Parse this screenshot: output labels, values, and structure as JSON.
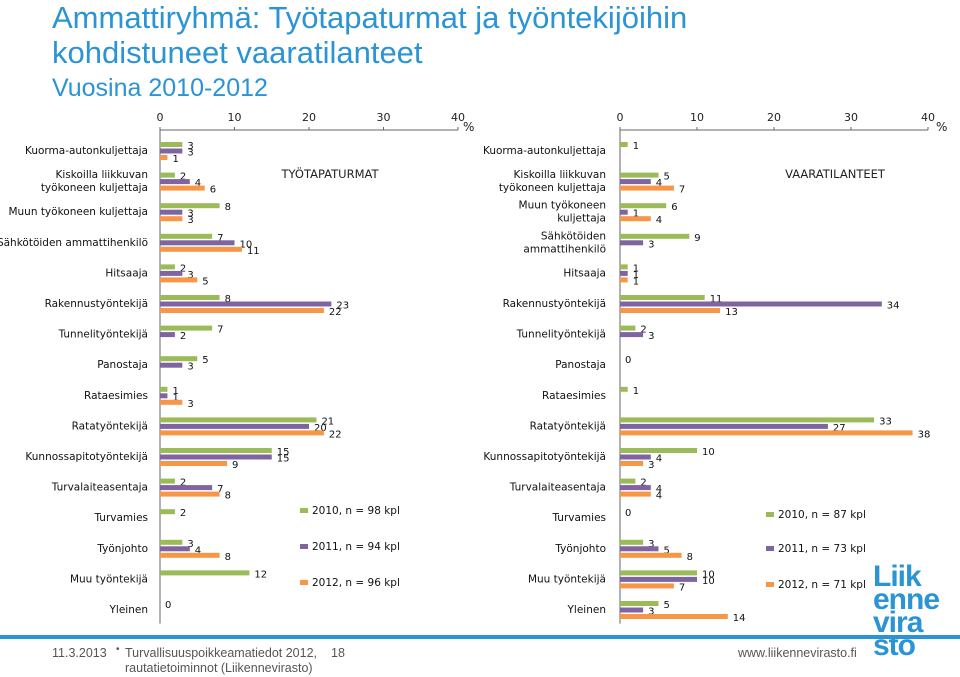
{
  "header": {
    "title_line1": "Ammattiryhmä: Työtapaturmat ja työntekijöihin",
    "title_line2": "kohdistuneet vaaratilanteet",
    "subtitle": "Vuosina 2010-2012"
  },
  "colors": {
    "2010": "#9bbb59",
    "2011": "#8064a2",
    "2012": "#f79646",
    "accent": "#2a94d4",
    "axis": "#666666"
  },
  "chart_data": [
    {
      "type": "bar",
      "orientation": "horizontal",
      "title": "TYÖTAPATURMAT",
      "unit": "%",
      "xlim": [
        0,
        40
      ],
      "xticks": [
        0,
        10,
        20,
        30,
        40
      ],
      "legend_position": "right",
      "categories": [
        "Kuorma-autonkuljettaja",
        "Kiskoilla liikkuvan työkoneen kuljettaja",
        "Muun työkoneen kuljettaja",
        "Sähkötöiden ammattihenkilö",
        "Hitsaaja",
        "Rakennustyöntekijä",
        "Tunnelityöntekijä",
        "Panostaja",
        "Rataesimies",
        "Ratatyöntekijä",
        "Kunnossapitotyöntekijä",
        "Turvalaiteasentaja",
        "Turvamies",
        "Työnjohto",
        "Muu työntekijä",
        "Yleinen"
      ],
      "series": [
        {
          "name": "2010, n = 98 kpl",
          "values": [
            3,
            2,
            8,
            7,
            2,
            8,
            7,
            5,
            1,
            21,
            15,
            2,
            2,
            3,
            12,
            0
          ]
        },
        {
          "name": "2011, n = 94 kpl",
          "values": [
            3,
            4,
            3,
            10,
            3,
            23,
            2,
            3,
            1,
            20,
            15,
            7,
            null,
            4,
            null,
            null
          ]
        },
        {
          "name": "2012, n = 96 kpl",
          "values": [
            1,
            6,
            3,
            11,
            5,
            22,
            null,
            null,
            3,
            22,
            9,
            8,
            null,
            8,
            null,
            null
          ]
        }
      ]
    },
    {
      "type": "bar",
      "orientation": "horizontal",
      "title": "VAARATILANTEET",
      "unit": "%",
      "xlim": [
        0,
        40
      ],
      "xticks": [
        0,
        10,
        20,
        30,
        40
      ],
      "legend_position": "right",
      "categories": [
        "Kuorma-autonkuljettaja",
        "Kiskoilla liikkuvan työkoneen kuljettaja",
        "Muun työkoneen kuljettaja",
        "Sähkötöiden ammattihenkilö",
        "Hitsaaja",
        "Rakennustyöntekijä",
        "Tunnelityöntekijä",
        "Panostaja",
        "Rataesimies",
        "Ratatyöntekijä",
        "Kunnossapitotyöntekijä",
        "Turvalaiteasentaja",
        "Turvamies",
        "Työnjohto",
        "Muu työntekijä",
        "Yleinen"
      ],
      "series": [
        {
          "name": "2010, n = 87 kpl",
          "values": [
            1,
            5,
            6,
            9,
            1,
            11,
            2,
            0,
            1,
            33,
            10,
            2,
            0,
            3,
            10,
            5
          ]
        },
        {
          "name": "2011, n = 73 kpl",
          "values": [
            null,
            4,
            1,
            3,
            1,
            34,
            3,
            null,
            null,
            27,
            4,
            4,
            null,
            5,
            10,
            3
          ]
        },
        {
          "name": "2012, n = 71 kpl",
          "values": [
            null,
            7,
            4,
            null,
            1,
            13,
            null,
            null,
            null,
            38,
            3,
            4,
            null,
            8,
            7,
            14
          ]
        }
      ]
    }
  ],
  "footer": {
    "date": "11.3.2013",
    "source_line1": "Turvallisuuspoikkeamatiedot 2012,",
    "source_line2": "rautatietoiminnot (Liikennevirasto)",
    "page": "18",
    "url": "www.liikennevirasto.fi"
  },
  "logo": {
    "lines": [
      "Liik",
      "enne",
      "vira",
      "sto"
    ]
  }
}
